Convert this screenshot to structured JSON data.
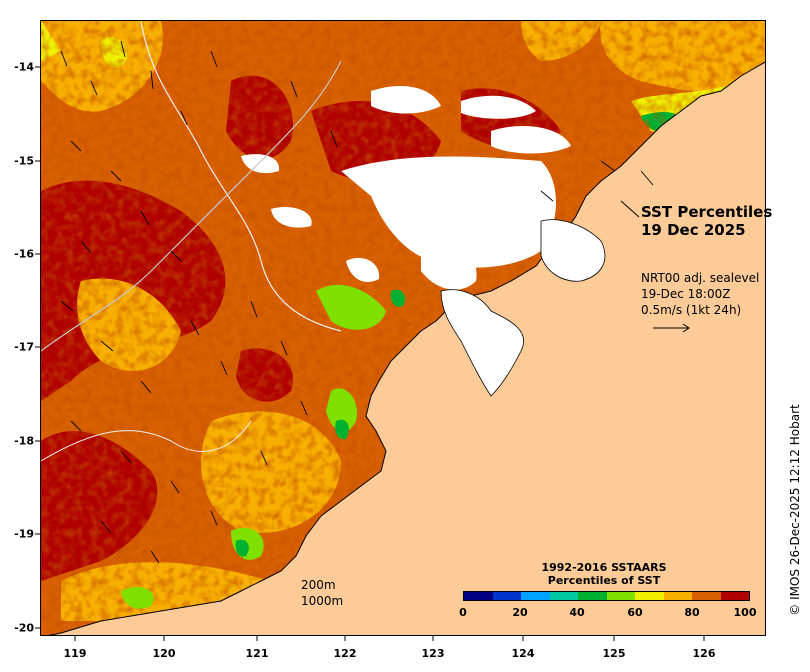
{
  "map": {
    "title_line1": "SST Percentiles",
    "title_line2": "19 Dec 2025",
    "current": {
      "line1": "NRT00 adj. sealevel",
      "line2": "19-Dec 18:00Z",
      "line3": "0.5m/s (1kt 24h)"
    },
    "depth_contours": [
      "200m",
      "1000m"
    ],
    "credit": "© IMOS 26-Dec-2025 12:12 Hobart",
    "longitude_ticks": [
      "119",
      "120",
      "121",
      "122",
      "123",
      "124",
      "125",
      "126"
    ],
    "latitude_ticks": [
      "-14",
      "-15",
      "-16",
      "-17",
      "-18",
      "-19",
      "-20"
    ],
    "colorbar": {
      "title_line1": "1992-2016 SSTAARS",
      "title_line2": "Percentiles of SST",
      "ticks": [
        "0",
        "20",
        "40",
        "60",
        "80",
        "100"
      ],
      "colors": [
        "#000080",
        "#0033cc",
        "#00a2ff",
        "#00c8a0",
        "#00b030",
        "#80e000",
        "#f0f000",
        "#f8b000",
        "#d86000",
        "#b00000"
      ]
    },
    "land_color": "#fccb98",
    "cloud_color": "#ffffff"
  }
}
